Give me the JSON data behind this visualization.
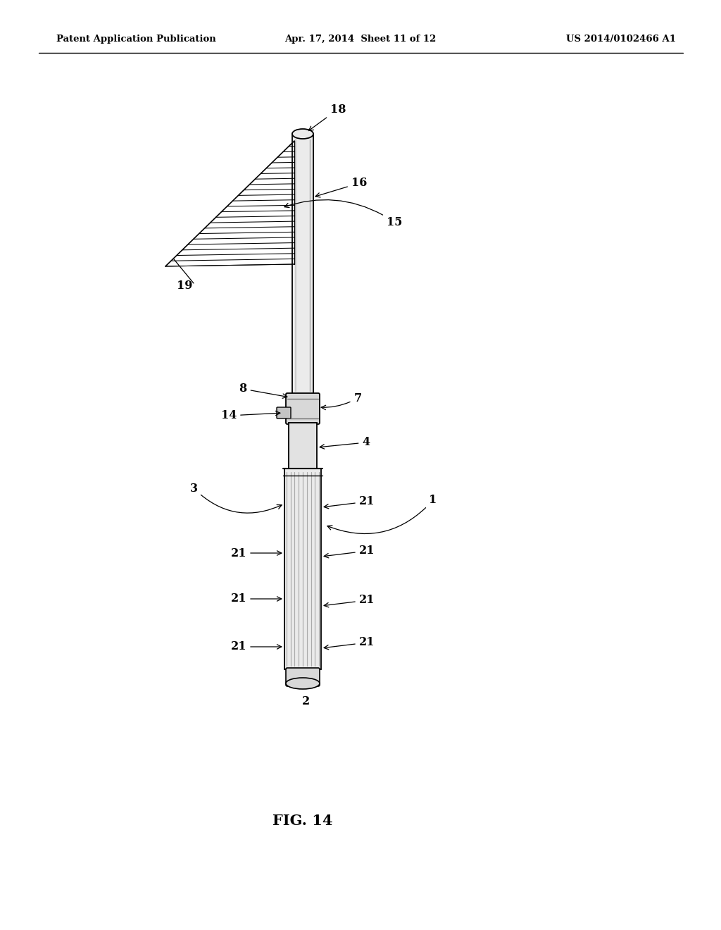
{
  "bg_color": "#ffffff",
  "header_left": "Patent Application Publication",
  "header_mid": "Apr. 17, 2014  Sheet 11 of 12",
  "header_right": "US 2014/0102466 A1",
  "fig_label": "FIG. 14"
}
